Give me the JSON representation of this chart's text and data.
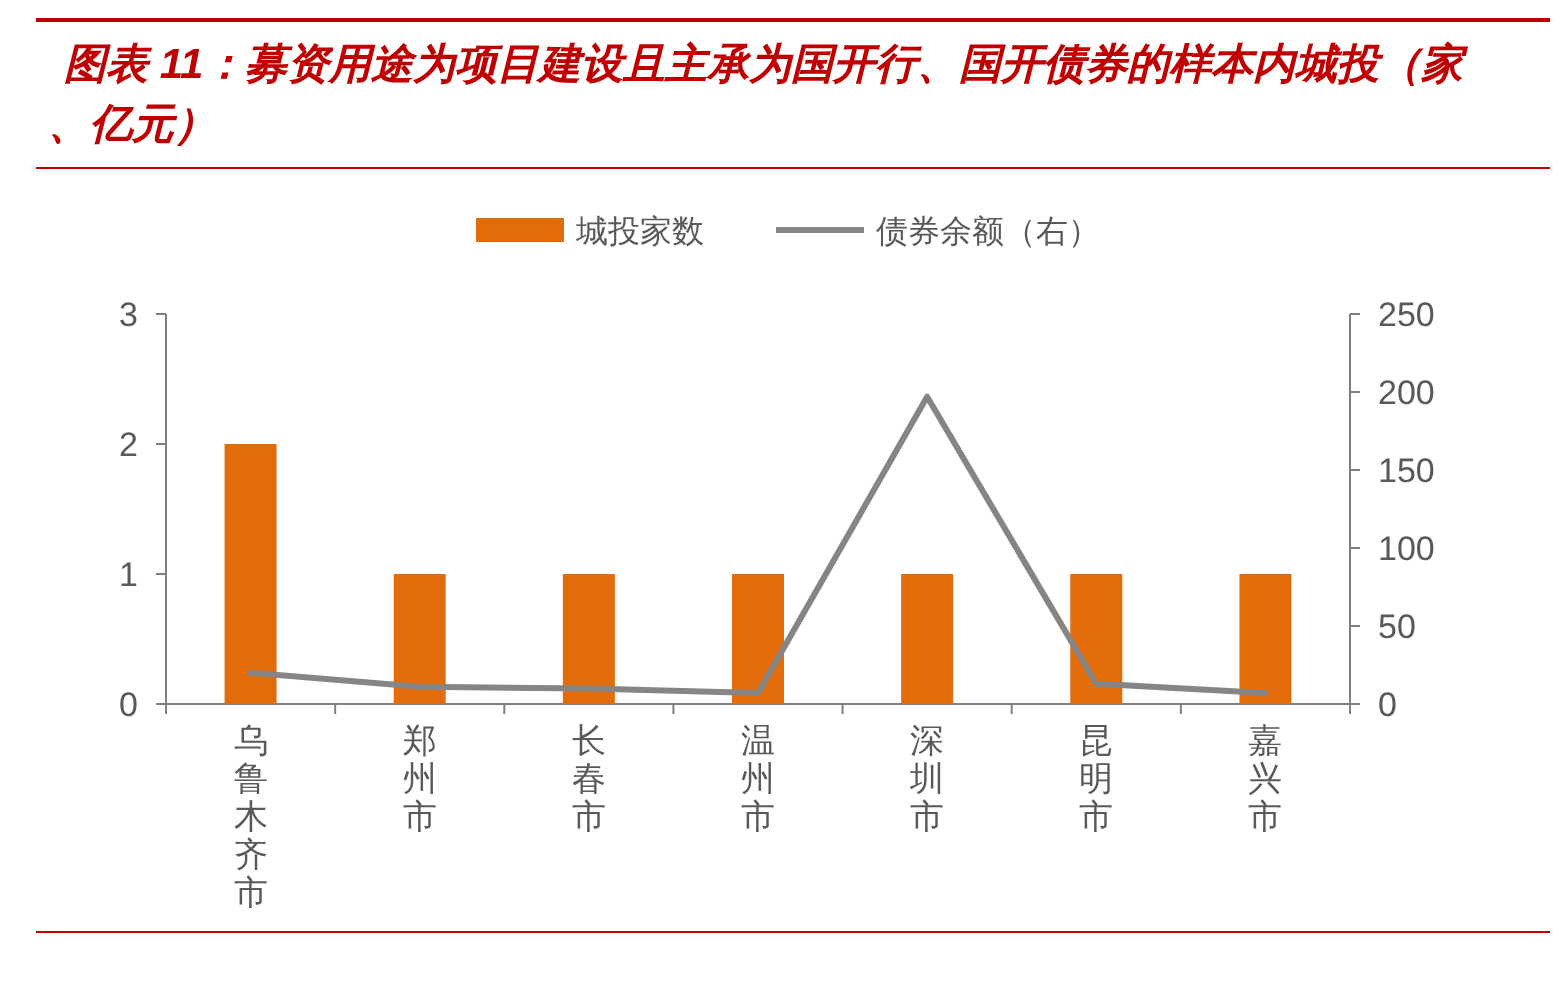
{
  "chart_data": {
    "type": "bar",
    "title": "图表 11：募资用途为项目建设且主承为国开行、国开债券的样本内城投（家、亿元）",
    "categories": [
      "乌鲁木齐市",
      "郑州市",
      "长春市",
      "温州市",
      "深圳市",
      "昆明市",
      "嘉兴市"
    ],
    "series": [
      {
        "name": "城投家数",
        "color": "#e36c0a",
        "values": [
          2,
          1,
          1,
          1,
          1,
          1,
          1
        ]
      },
      {
        "name": "债券余额（右）",
        "type": "line",
        "axis": "y2",
        "color": "#858585",
        "values": [
          20,
          11,
          10,
          7,
          197,
          13,
          7
        ]
      }
    ],
    "ylim": [
      0,
      3
    ],
    "yticks": [
      0,
      1,
      2,
      3
    ],
    "y2lim": [
      0,
      250
    ],
    "y2ticks": [
      0,
      50,
      100,
      150,
      200,
      250
    ],
    "legend": "top"
  }
}
